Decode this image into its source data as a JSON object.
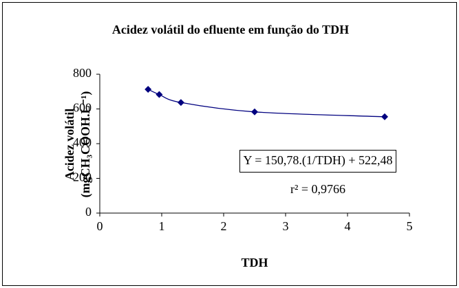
{
  "chart_data": {
    "type": "scatter",
    "title": "Acidez volátil do efluente em função do TDH",
    "xlabel": "TDH",
    "ylabel": [
      "Acidez volátil",
      "(mgCH₃COOH.L⁻¹)"
    ],
    "annotations": [
      "Y = 150,78.(1/TDH) + 522,48",
      "r² = 0,9766"
    ],
    "series": [
      {
        "color": "#00007f",
        "x": [
          0.78,
          0.96,
          1.31,
          2.5,
          4.6
        ],
        "values": [
          713,
          683,
          637,
          583,
          555
        ]
      }
    ],
    "xlim": [
      0,
      5
    ],
    "xticks": [
      0,
      1,
      2,
      3,
      4,
      5
    ],
    "ylim": [
      0,
      800
    ],
    "yticks": [
      0,
      200,
      400,
      600,
      800
    ],
    "grid": false
  }
}
